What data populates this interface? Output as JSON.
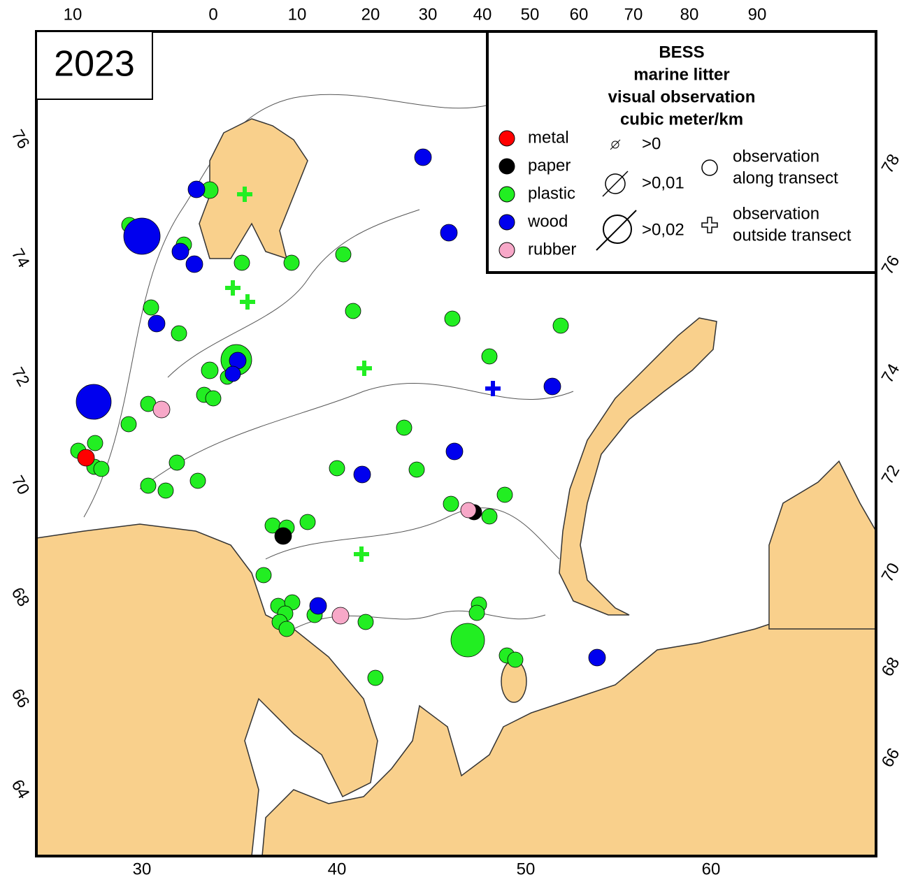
{
  "year": "2023",
  "legend": {
    "title": [
      "BESS",
      "marine litter",
      "visual observation",
      "cubic meter/km"
    ],
    "categories": [
      {
        "label": "metal",
        "color": "#ff0000"
      },
      {
        "label": "paper",
        "color": "#000000"
      },
      {
        "label": "plastic",
        "color": "#22ee22"
      },
      {
        "label": "wood",
        "color": "#0000ee"
      },
      {
        "label": "rubber",
        "color": "#f7a8c8"
      }
    ],
    "size_classes": [
      ">0",
      ">0,01",
      ">0,02"
    ],
    "symbols": [
      [
        "observation",
        "along transect"
      ],
      [
        "observation",
        "outside transect"
      ]
    ]
  },
  "axes": {
    "top": [
      10,
      0,
      10,
      20,
      30,
      40,
      50,
      60,
      70,
      80,
      90
    ],
    "bottom": [
      30,
      40,
      50,
      60
    ],
    "left": [
      76,
      74,
      72,
      70,
      68,
      66,
      64
    ],
    "right": [
      78,
      76,
      74,
      72,
      70,
      68,
      66
    ]
  }
}
